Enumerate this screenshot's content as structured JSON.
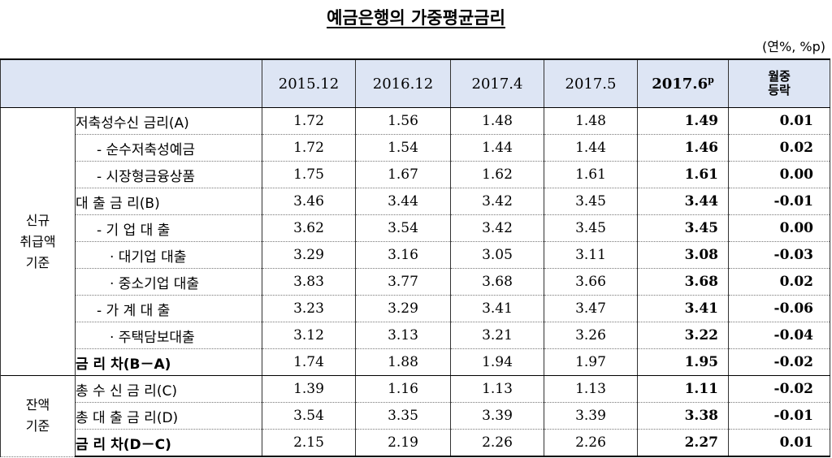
{
  "title": "예금은행의 가중평균금리",
  "unit": "(연%, %p)",
  "columns": {
    "c2015_12": "2015.12",
    "c2016_12": "2016.12",
    "c2017_4": "2017.4",
    "c2017_5": "2017.5",
    "c2017_6": "2017.6",
    "c2017_6_sup": "p",
    "change_line1": "월중",
    "change_line2": "등락"
  },
  "groups": {
    "new": "신규\n취급액\n기준",
    "balance": "잔액\n기준"
  },
  "rows": [
    {
      "label": "저축성수신 금리(A)",
      "v": [
        "1.72",
        "1.56",
        "1.48",
        "1.48",
        "1.49",
        "0.01"
      ]
    },
    {
      "label": "- 순수저축성예금",
      "v": [
        "1.72",
        "1.54",
        "1.44",
        "1.44",
        "1.46",
        "0.02"
      ]
    },
    {
      "label": "- 시장형금융상품",
      "v": [
        "1.75",
        "1.67",
        "1.62",
        "1.61",
        "1.61",
        "0.00"
      ]
    },
    {
      "label": "대 출 금 리(B)",
      "v": [
        "3.46",
        "3.44",
        "3.42",
        "3.45",
        "3.44",
        "-0.01"
      ]
    },
    {
      "label": "- 기 업 대 출",
      "v": [
        "3.62",
        "3.54",
        "3.42",
        "3.45",
        "3.45",
        "0.00"
      ]
    },
    {
      "label": "· 대기업 대출",
      "v": [
        "3.29",
        "3.16",
        "3.05",
        "3.11",
        "3.08",
        "-0.03"
      ]
    },
    {
      "label": "· 중소기업 대출",
      "v": [
        "3.83",
        "3.77",
        "3.68",
        "3.66",
        "3.68",
        "0.02"
      ]
    },
    {
      "label": "- 가 계 대 출",
      "v": [
        "3.23",
        "3.29",
        "3.41",
        "3.47",
        "3.41",
        "-0.06"
      ]
    },
    {
      "label": "· 주택담보대출",
      "v": [
        "3.12",
        "3.13",
        "3.21",
        "3.26",
        "3.22",
        "-0.04"
      ]
    },
    {
      "label": "금 리 차(B－A)",
      "v": [
        "1.74",
        "1.88",
        "1.94",
        "1.97",
        "1.95",
        "-0.02"
      ]
    },
    {
      "label": "총 수 신 금 리(C)",
      "v": [
        "1.39",
        "1.16",
        "1.13",
        "1.13",
        "1.11",
        "-0.02"
      ]
    },
    {
      "label": "총 대 출 금 리(D)",
      "v": [
        "3.54",
        "3.35",
        "3.39",
        "3.39",
        "3.38",
        "-0.01"
      ]
    },
    {
      "label": "금 리 차(D－C)",
      "v": [
        "2.15",
        "2.19",
        "2.26",
        "2.26",
        "2.27",
        "0.01"
      ]
    }
  ]
}
